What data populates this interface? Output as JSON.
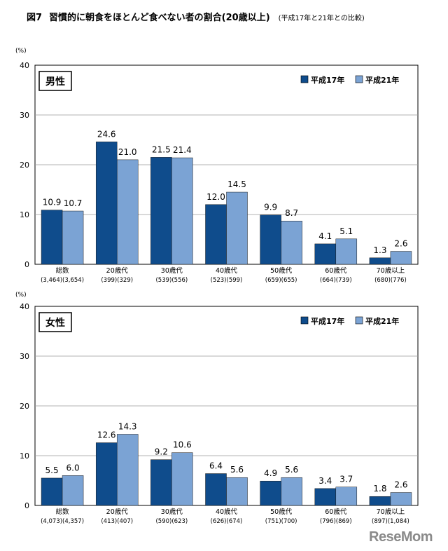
{
  "figure": {
    "number": "図7",
    "title": "習慣的に朝食をほとんど食べない者の割合(20歳以上)",
    "subtitle": "(平成17年と21年との比較)"
  },
  "watermark": "ReseMom",
  "chart_data": [
    {
      "type": "bar",
      "panel_label": "男性",
      "y_unit": "(%)",
      "ylim": [
        0,
        40
      ],
      "yticks": [
        0,
        10,
        20,
        30,
        40
      ],
      "grid": true,
      "legend_placement": "top-right",
      "categories": [
        "総数",
        "20歳代",
        "30歳代",
        "40歳代",
        "50歳代",
        "60歳代",
        "70歳以上"
      ],
      "category_counts": [
        "(3,464)(3,654)",
        "(399)(329)",
        "(539)(556)",
        "(523)(599)",
        "(659)(655)",
        "(664)(739)",
        "(680)(776)"
      ],
      "series": [
        {
          "name": "平成17年",
          "color": "#0F4C8C",
          "values": [
            10.9,
            24.6,
            21.5,
            12.0,
            9.9,
            4.1,
            1.3
          ]
        },
        {
          "name": "平成21年",
          "color": "#7BA3D4",
          "values": [
            10.7,
            21.0,
            21.4,
            14.5,
            8.7,
            5.1,
            2.6
          ]
        }
      ]
    },
    {
      "type": "bar",
      "panel_label": "女性",
      "y_unit": "(%)",
      "ylim": [
        0,
        40
      ],
      "yticks": [
        0,
        10,
        20,
        30,
        40
      ],
      "grid": true,
      "legend_placement": "top-right",
      "categories": [
        "総数",
        "20歳代",
        "30歳代",
        "40歳代",
        "50歳代",
        "60歳代",
        "70歳以上"
      ],
      "category_counts": [
        "(4,073)(4,357)",
        "(413)(407)",
        "(590)(623)",
        "(626)(674)",
        "(751)(700)",
        "(796)(869)",
        "(897)(1,084)"
      ],
      "series": [
        {
          "name": "平成17年",
          "color": "#0F4C8C",
          "values": [
            5.5,
            12.6,
            9.2,
            6.4,
            4.9,
            3.4,
            1.8
          ]
        },
        {
          "name": "平成21年",
          "color": "#7BA3D4",
          "values": [
            6.0,
            14.3,
            10.6,
            5.6,
            5.6,
            3.7,
            2.6
          ]
        }
      ]
    }
  ]
}
